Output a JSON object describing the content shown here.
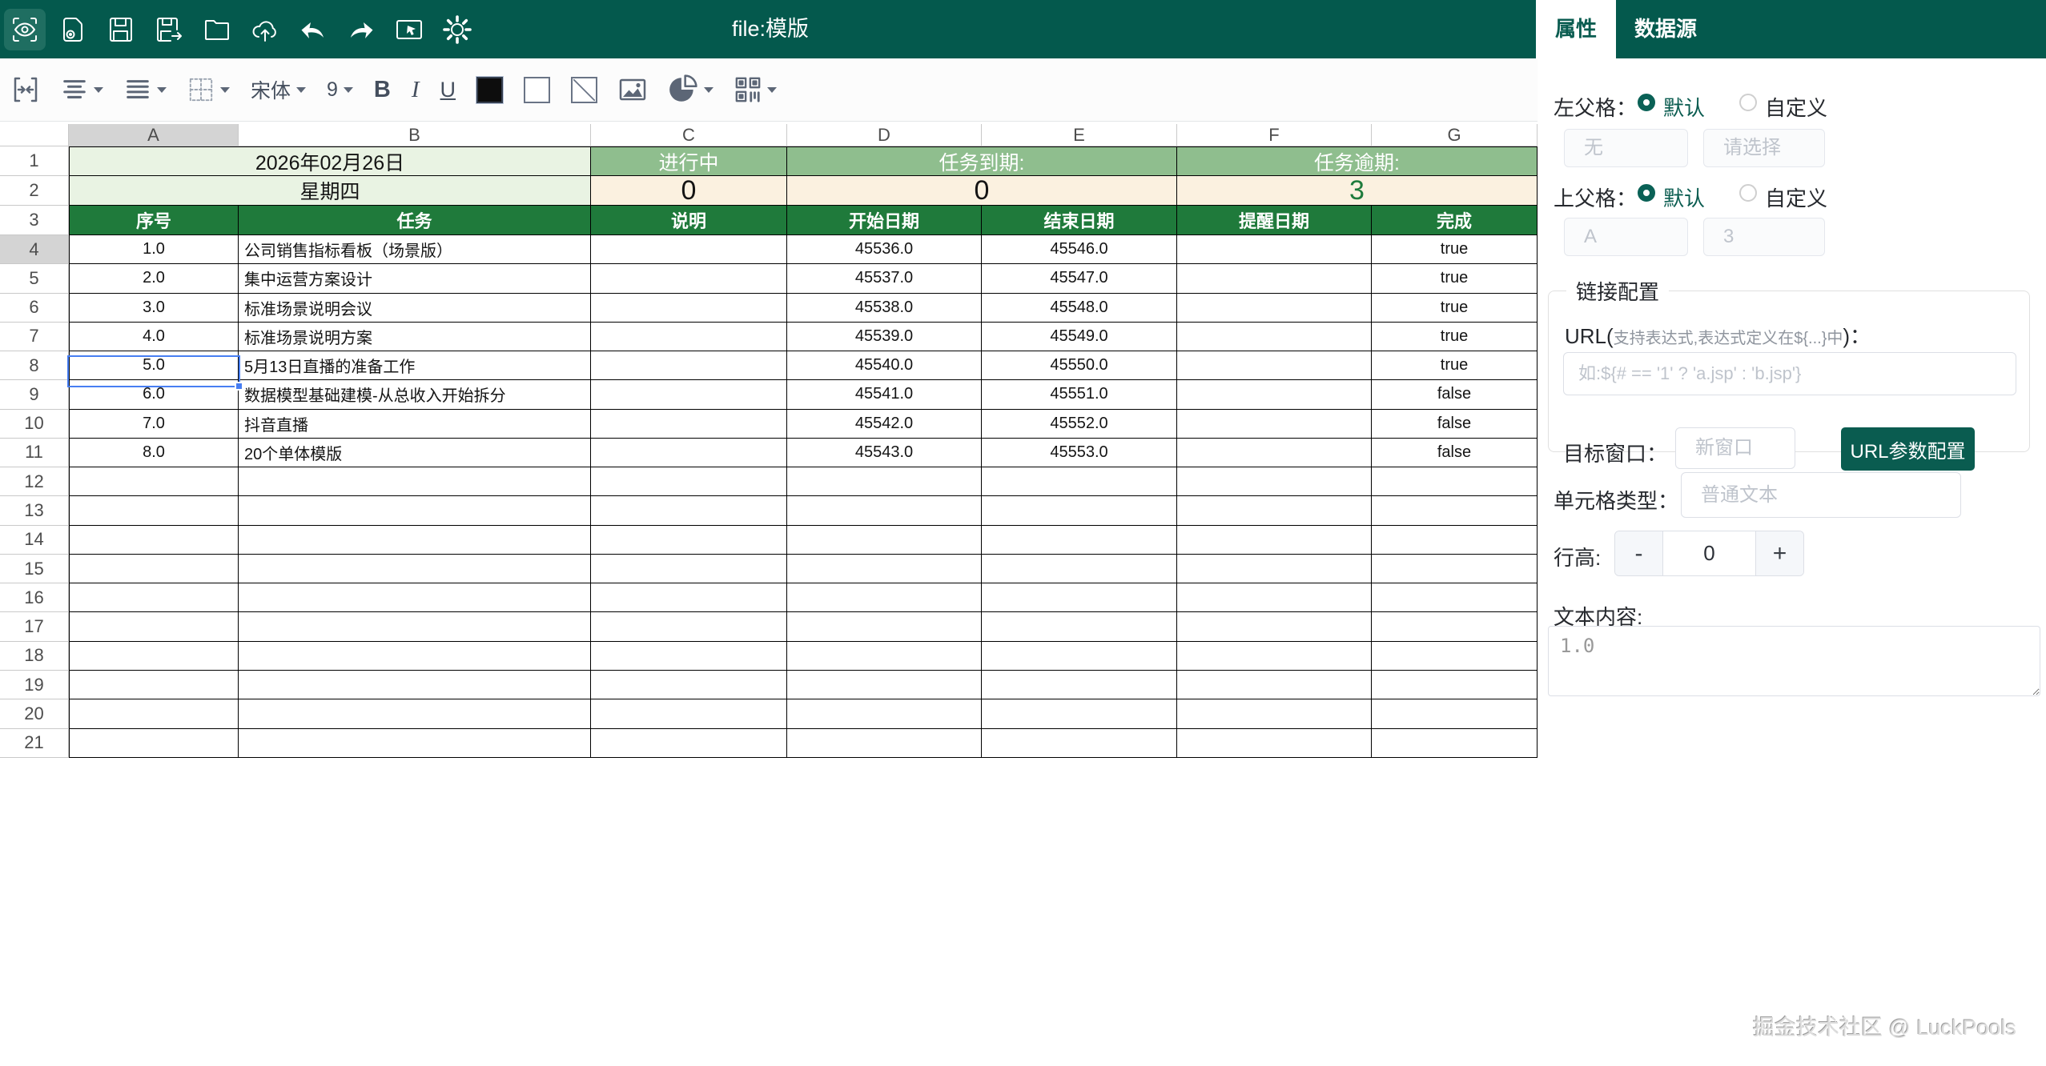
{
  "topbar": {
    "title": "file:模版",
    "icons": [
      "preview",
      "preview-tag",
      "save",
      "save-as",
      "open-folder",
      "upload",
      "undo",
      "redo",
      "preview-window",
      "settings"
    ]
  },
  "tabs": {
    "properties": "属性",
    "datasource": "数据源"
  },
  "toolbar": {
    "font_family": "宋体",
    "font_size": "9",
    "bold": "B",
    "italic": "I",
    "underline": "U",
    "icons": [
      "merge-cells",
      "align-horizontal",
      "align-vertical",
      "borders",
      "font-color",
      "fill-color",
      "diagonal-border",
      "insert-image",
      "insert-chart",
      "insert-qrcode"
    ]
  },
  "grid": {
    "column_headers": [
      "A",
      "B",
      "C",
      "D",
      "E",
      "F",
      "G"
    ],
    "total_rows": 21,
    "banner": {
      "date": "2026年02月26日",
      "weekday": "星期四",
      "in_progress_label": "进行中",
      "in_progress_value": "0",
      "due_label": "任务到期:",
      "due_value": "0",
      "overdue_label": "任务逾期:",
      "overdue_value": "3"
    },
    "table_headers": [
      "序号",
      "任务",
      "说明",
      "开始日期",
      "结束日期",
      "提醒日期",
      "完成"
    ],
    "tasks": [
      {
        "no": "1.0",
        "task": "公司销售指标看板（场景版）",
        "note": "",
        "start": "45536.0",
        "end": "45546.0",
        "remind": "",
        "done": "true"
      },
      {
        "no": "2.0",
        "task": "集中运营方案设计",
        "note": "",
        "start": "45537.0",
        "end": "45547.0",
        "remind": "",
        "done": "true"
      },
      {
        "no": "3.0",
        "task": "标准场景说明会议",
        "note": "",
        "start": "45538.0",
        "end": "45548.0",
        "remind": "",
        "done": "true"
      },
      {
        "no": "4.0",
        "task": "标准场景说明方案",
        "note": "",
        "start": "45539.0",
        "end": "45549.0",
        "remind": "",
        "done": "true"
      },
      {
        "no": "5.0",
        "task": "5月13日直播的准备工作",
        "note": "",
        "start": "45540.0",
        "end": "45550.0",
        "remind": "",
        "done": "true"
      },
      {
        "no": "6.0",
        "task": "数据模型基础建模-从总收入开始拆分",
        "note": "",
        "start": "45541.0",
        "end": "45551.0",
        "remind": "",
        "done": "false"
      },
      {
        "no": "7.0",
        "task": "抖音直播",
        "note": "",
        "start": "45542.0",
        "end": "45552.0",
        "remind": "",
        "done": "false"
      },
      {
        "no": "8.0",
        "task": "20个单体模版",
        "note": "",
        "start": "45543.0",
        "end": "45553.0",
        "remind": "",
        "done": "false"
      }
    ],
    "selection": {
      "cell": "A4"
    }
  },
  "panel": {
    "left_parent": {
      "label": "左父格：",
      "option_default": "默认",
      "option_custom": "自定义",
      "input1_placeholder": "无",
      "input2_placeholder": "请选择"
    },
    "top_parent": {
      "label": "上父格：",
      "option_default": "默认",
      "option_custom": "自定义",
      "input1_placeholder": "A",
      "input2_placeholder": "3"
    },
    "link_config": {
      "legend": "链接配置",
      "url_label_prefix": "URL(",
      "url_label_note": "支持表达式,表达式定义在${...}中",
      "url_label_suffix": ")：",
      "url_placeholder": "如:${# == '1' ? 'a.jsp' : 'b.jsp'}",
      "target_label": "目标窗口：",
      "target_placeholder": "新窗口",
      "param_button": "URL参数配置"
    },
    "cell_type": {
      "label": "单元格类型：",
      "placeholder": "普通文本"
    },
    "row_height": {
      "label": "行高:",
      "minus": "-",
      "value": "0",
      "plus": "+"
    },
    "text_content": {
      "label": "文本内容:",
      "value": "1.0"
    },
    "watermark": "掘金技术社区 @ LuckPools"
  },
  "colors": {
    "topbar_green": "#04594d",
    "accent_green": "#0a5c50",
    "table_header_green": "#1f7a3b",
    "sage_green": "#8fbe8e",
    "light_green": "#e9f3e3",
    "cream": "#fbf1e0",
    "selection_blue": "#477ef2"
  }
}
